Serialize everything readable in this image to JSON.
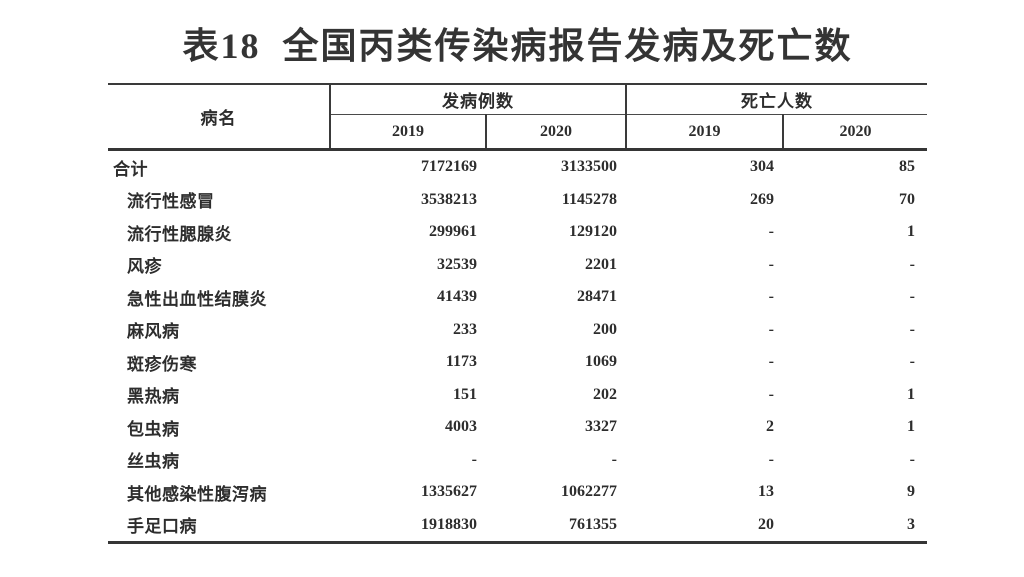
{
  "page": {
    "title": "表18  全国丙类传染病报告发病及死亡数"
  },
  "table": {
    "header": {
      "disease_col": "病名",
      "cases_group": "发病例数",
      "deaths_group": "死亡人数",
      "cases_years": [
        "2019",
        "2020"
      ],
      "deaths_years": [
        "2019",
        "2020"
      ]
    },
    "rows": [
      {
        "name": "合计",
        "indent": false,
        "cases_2019": "7172169",
        "cases_2020": "3133500",
        "deaths_2019": "304",
        "deaths_2020": "85"
      },
      {
        "name": "流行性感冒",
        "indent": true,
        "cases_2019": "3538213",
        "cases_2020": "1145278",
        "deaths_2019": "269",
        "deaths_2020": "70"
      },
      {
        "name": "流行性腮腺炎",
        "indent": true,
        "cases_2019": "299961",
        "cases_2020": "129120",
        "deaths_2019": "-",
        "deaths_2020": "1"
      },
      {
        "name": "风疹",
        "indent": true,
        "cases_2019": "32539",
        "cases_2020": "2201",
        "deaths_2019": "-",
        "deaths_2020": "-"
      },
      {
        "name": "急性出血性结膜炎",
        "indent": true,
        "cases_2019": "41439",
        "cases_2020": "28471",
        "deaths_2019": "-",
        "deaths_2020": "-"
      },
      {
        "name": "麻风病",
        "indent": true,
        "cases_2019": "233",
        "cases_2020": "200",
        "deaths_2019": "-",
        "deaths_2020": "-"
      },
      {
        "name": "斑疹伤寒",
        "indent": true,
        "cases_2019": "1173",
        "cases_2020": "1069",
        "deaths_2019": "-",
        "deaths_2020": "-"
      },
      {
        "name": "黑热病",
        "indent": true,
        "cases_2019": "151",
        "cases_2020": "202",
        "deaths_2019": "-",
        "deaths_2020": "1"
      },
      {
        "name": "包虫病",
        "indent": true,
        "cases_2019": "4003",
        "cases_2020": "3327",
        "deaths_2019": "2",
        "deaths_2020": "1"
      },
      {
        "name": "丝虫病",
        "indent": true,
        "cases_2019": "-",
        "cases_2020": "-",
        "deaths_2019": "-",
        "deaths_2020": "-"
      },
      {
        "name": "其他感染性腹泻病",
        "indent": true,
        "cases_2019": "1335627",
        "cases_2020": "1062277",
        "deaths_2019": "13",
        "deaths_2020": "9"
      },
      {
        "name": "手足口病",
        "indent": true,
        "cases_2019": "1918830",
        "cases_2020": "761355",
        "deaths_2019": "20",
        "deaths_2020": "3"
      }
    ],
    "colors": {
      "text": "#2d2d2d",
      "line": "#3a3a3a",
      "background": "#ffffff"
    }
  }
}
